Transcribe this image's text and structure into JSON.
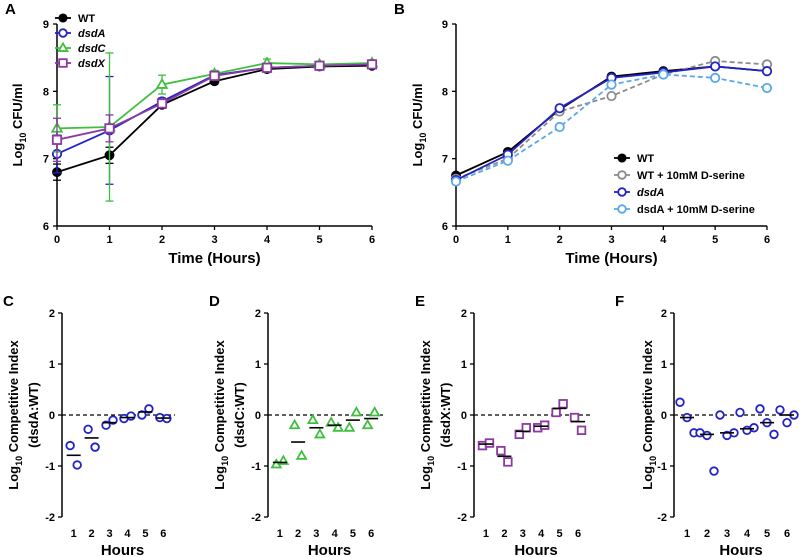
{
  "colors": {
    "wt": "#000000",
    "dsdA": "#2323c6",
    "dsdC": "#3fbf3f",
    "dsdX": "#8a3aa0",
    "wt_dserine": "#8c8c8c",
    "dsdA_dserine": "#5aa9e6"
  },
  "chart_data": [
    {
      "panel": "A",
      "type": "line",
      "xlabel": "Time (Hours)",
      "ylabel": "Log10 CFU/ml",
      "xlim": [
        0,
        6
      ],
      "ylim": [
        6,
        9
      ],
      "xticks": [
        "0",
        "1",
        "2",
        "3",
        "4",
        "5",
        "6"
      ],
      "yticks": [
        "6",
        "7",
        "8",
        "9"
      ],
      "legend_position": "top-left",
      "x": [
        0,
        1,
        2,
        3,
        4,
        5,
        6
      ],
      "series": [
        {
          "name": "WT",
          "italic": false,
          "color_key": "wt",
          "marker": "circle-filled",
          "dashed": false,
          "values": [
            6.8,
            7.05,
            7.8,
            8.15,
            8.33,
            8.37,
            8.38
          ],
          "err": [
            0.12,
            0.12,
            0.05,
            0.04,
            0.04,
            0.03,
            0.03
          ]
        },
        {
          "name": "dsdA",
          "italic": true,
          "color_key": "dsdA",
          "marker": "circle-open",
          "dashed": false,
          "values": [
            7.07,
            7.42,
            7.85,
            8.24,
            8.35,
            8.38,
            8.41
          ],
          "err": [
            0.28,
            0.8,
            0.05,
            0.05,
            0.06,
            0.03,
            0.03
          ]
        },
        {
          "name": "dsdC",
          "italic": true,
          "color_key": "dsdC",
          "marker": "triangle-open",
          "dashed": false,
          "values": [
            7.45,
            7.47,
            8.1,
            8.26,
            8.42,
            8.4,
            8.42
          ],
          "err": [
            0.35,
            1.1,
            0.14,
            0.05,
            0.06,
            0.04,
            0.03
          ]
        },
        {
          "name": "dsdX",
          "italic": true,
          "color_key": "dsdX",
          "marker": "square-open",
          "dashed": false,
          "values": [
            7.28,
            7.45,
            7.82,
            8.23,
            8.35,
            8.38,
            8.4
          ],
          "err": [
            0.32,
            0.2,
            0.06,
            0.05,
            0.05,
            0.03,
            0.03
          ]
        }
      ]
    },
    {
      "panel": "B",
      "type": "line",
      "xlabel": "Time (Hours)",
      "ylabel": "Log10 CFU/ml",
      "xlim": [
        0,
        6
      ],
      "ylim": [
        6,
        9
      ],
      "xticks": [
        "0",
        "1",
        "2",
        "3",
        "4",
        "5",
        "6"
      ],
      "yticks": [
        "6",
        "7",
        "8",
        "9"
      ],
      "legend_position": "bottom-right",
      "x": [
        0,
        1,
        2,
        3,
        4,
        5,
        6
      ],
      "series": [
        {
          "name": "WT",
          "color_key": "wt",
          "marker": "circle-filled",
          "dashed": false,
          "values": [
            6.75,
            7.1,
            7.73,
            8.22,
            8.3,
            8.37,
            8.3
          ]
        },
        {
          "name": "WT + 10mM D-serine",
          "color_key": "wt_dserine",
          "marker": "circle-open",
          "dashed": true,
          "values": [
            6.7,
            7.0,
            7.7,
            7.93,
            8.25,
            8.45,
            8.4
          ]
        },
        {
          "name": "dsdA",
          "italic": true,
          "color_key": "dsdA",
          "marker": "circle-open",
          "dashed": false,
          "values": [
            6.68,
            7.06,
            7.75,
            8.2,
            8.28,
            8.37,
            8.3
          ]
        },
        {
          "name": "dsdA + 10mM  D-serine",
          "color_key": "dsdA_dserine",
          "marker": "circle-open",
          "dashed": true,
          "values": [
            6.66,
            6.97,
            7.47,
            8.1,
            8.25,
            8.2,
            8.05
          ]
        }
      ]
    },
    {
      "panel": "C",
      "type": "scatter",
      "ylabel": "Log10 Competitive Index",
      "ylabel2": "(dsdA:WT)",
      "xlabel": "Hours",
      "ylim": [
        -2,
        2
      ],
      "yticks": [
        "-2",
        "-1",
        "0",
        "1",
        "2"
      ],
      "xticks": [
        "1",
        "2",
        "3",
        "4",
        "5",
        "6"
      ],
      "color_key": "dsdA",
      "marker": "circle-open",
      "points": [
        {
          "hour": 1,
          "values": [
            -0.6,
            -0.98
          ]
        },
        {
          "hour": 2,
          "values": [
            -0.28,
            -0.63
          ]
        },
        {
          "hour": 3,
          "values": [
            -0.2,
            -0.1
          ]
        },
        {
          "hour": 4,
          "values": [
            -0.07,
            -0.02
          ]
        },
        {
          "hour": 5,
          "values": [
            0.0,
            0.12
          ]
        },
        {
          "hour": 6,
          "values": [
            -0.05,
            -0.07
          ]
        }
      ],
      "medians": [
        -0.79,
        -0.45,
        -0.15,
        -0.05,
        0.06,
        -0.06
      ]
    },
    {
      "panel": "D",
      "type": "scatter",
      "ylabel": "Log10 Competitive Index",
      "ylabel2": "(dsdC:WT)",
      "xlabel": "Hours",
      "ylim": [
        -2,
        2
      ],
      "yticks": [
        "-2",
        "-1",
        "0",
        "1",
        "2"
      ],
      "xticks": [
        "1",
        "2",
        "3",
        "4",
        "5",
        "6"
      ],
      "color_key": "dsdC",
      "marker": "triangle-open",
      "points": [
        {
          "hour": 1,
          "values": [
            -0.97,
            -0.9
          ]
        },
        {
          "hour": 2,
          "values": [
            -0.2,
            -0.8
          ]
        },
        {
          "hour": 3,
          "values": [
            -0.1,
            -0.38
          ]
        },
        {
          "hour": 4,
          "values": [
            -0.15,
            -0.25
          ]
        },
        {
          "hour": 5,
          "values": [
            -0.25,
            0.05
          ]
        },
        {
          "hour": 6,
          "values": [
            -0.2,
            0.05
          ]
        }
      ],
      "medians": [
        -0.93,
        -0.53,
        -0.25,
        -0.2,
        -0.1,
        -0.07
      ]
    },
    {
      "panel": "E",
      "type": "scatter",
      "ylabel": "Log10 Competitive Index",
      "ylabel2": "(dsdX:WT)",
      "xlabel": "Hours",
      "ylim": [
        -2,
        2
      ],
      "yticks": [
        "-2",
        "-1",
        "0",
        "1",
        "2"
      ],
      "xticks": [
        "1",
        "2",
        "3",
        "4",
        "5",
        "6"
      ],
      "color_key": "dsdX",
      "marker": "square-open",
      "points": [
        {
          "hour": 1,
          "values": [
            -0.6,
            -0.55
          ]
        },
        {
          "hour": 2,
          "values": [
            -0.7,
            -0.92
          ]
        },
        {
          "hour": 3,
          "values": [
            -0.38,
            -0.25
          ]
        },
        {
          "hour": 4,
          "values": [
            -0.25,
            -0.2
          ]
        },
        {
          "hour": 5,
          "values": [
            0.05,
            0.22
          ]
        },
        {
          "hour": 6,
          "values": [
            -0.05,
            -0.3
          ]
        }
      ],
      "medians": [
        -0.57,
        -0.81,
        -0.32,
        -0.22,
        0.13,
        -0.13
      ]
    },
    {
      "panel": "F",
      "type": "scatter",
      "ylabel": "Log10 Competitive Index",
      "xlabel": "Hours",
      "ylim": [
        -2,
        2
      ],
      "yticks": [
        "-2",
        "-1",
        "0",
        "1",
        "2"
      ],
      "xticks": [
        "1",
        "2",
        "3",
        "4",
        "5",
        "6"
      ],
      "color_key": "dsdA",
      "marker": "circle-open",
      "points": [
        {
          "hour": 1,
          "values": [
            0.25,
            -0.05,
            -0.35
          ]
        },
        {
          "hour": 2,
          "values": [
            -0.35,
            -0.4,
            -1.1
          ]
        },
        {
          "hour": 3,
          "values": [
            0.0,
            -0.4,
            -0.35
          ]
        },
        {
          "hour": 4,
          "values": [
            0.05,
            -0.3,
            -0.25
          ]
        },
        {
          "hour": 5,
          "values": [
            0.12,
            -0.15,
            -0.38
          ]
        },
        {
          "hour": 6,
          "values": [
            0.1,
            -0.15,
            0.0
          ]
        }
      ],
      "medians": [
        -0.05,
        -0.38,
        -0.35,
        -0.27,
        -0.15,
        0.0
      ]
    }
  ]
}
